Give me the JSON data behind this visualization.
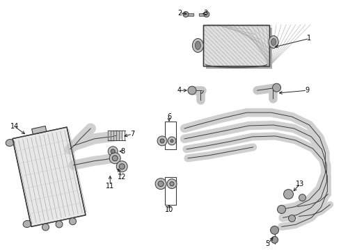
{
  "bg_color": "#ffffff",
  "line_color": "#3a3a3a",
  "label_color": "#000000",
  "dark_fill": "#5a5a5a",
  "mid_fill": "#888888",
  "light_fill": "#c8c8c8",
  "hatch_fill": "#b0b0b0"
}
